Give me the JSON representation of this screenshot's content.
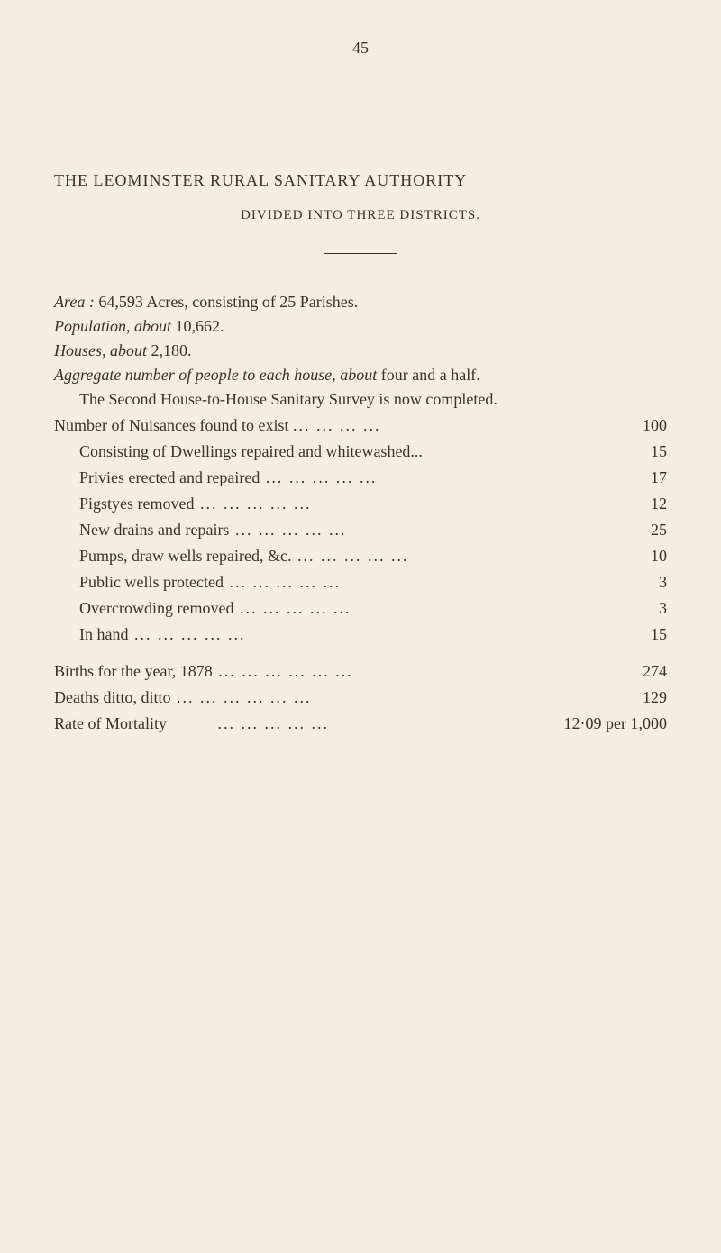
{
  "page_number": "45",
  "title": "THE LEOMINSTER RURAL SANITARY AUTHORITY",
  "subtitle": "DIVIDED INTO THREE DISTRICTS.",
  "area_line": {
    "label": "Area :",
    "text": " 64,593 Acres, consisting of 25 Parishes."
  },
  "population_line": {
    "label": "Population, about",
    "text": " 10,662."
  },
  "houses_line": {
    "label": "Houses, about",
    "text": " 2,180."
  },
  "aggregate_line": {
    "label1": "Aggregate number of people to each house, about",
    "text1": " four and a half."
  },
  "survey_line": "The Second House-to-House Sanitary Survey is now completed.",
  "nuisances": {
    "label": "Number of Nuisances found to exist",
    "value": "100"
  },
  "stats": [
    {
      "label": "Consisting of Dwellings repaired and whitewashed...",
      "value": "15"
    },
    {
      "label": "Privies erected and repaired",
      "value": "17"
    },
    {
      "label": "Pigstyes removed",
      "value": "12"
    },
    {
      "label": "New drains and repairs",
      "value": "25"
    },
    {
      "label": "Pumps, draw wells repaired, &c.",
      "value": "10"
    },
    {
      "label": "Public wells protected",
      "value": "3"
    },
    {
      "label": "Overcrowding removed",
      "value": "3"
    },
    {
      "label": "In hand",
      "value": "15"
    }
  ],
  "totals": [
    {
      "label": "Births for the year, 1878",
      "value": "274"
    },
    {
      "label": "Deaths ditto, ditto",
      "value": "129"
    }
  ],
  "rate": {
    "label": "Rate of Mortality",
    "value": "12·09 per 1,000"
  },
  "colors": {
    "background": "#f5ede0",
    "text": "#3a3228"
  }
}
